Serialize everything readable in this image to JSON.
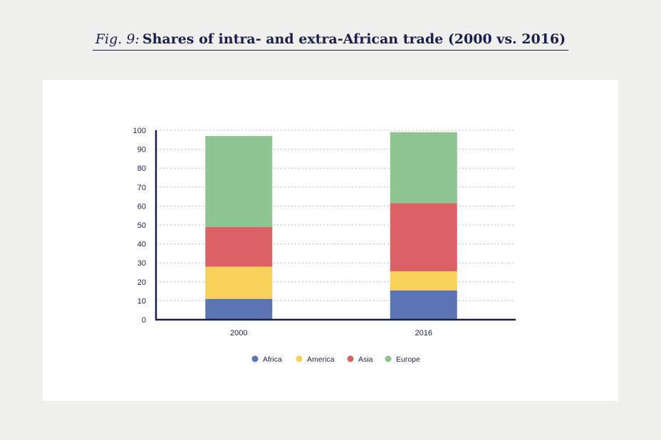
{
  "figure": {
    "label": "Fig. 9:",
    "title": "Shares of intra- and extra-African trade (2000 vs. 2016)"
  },
  "chart_data": {
    "type": "bar",
    "stacked": true,
    "categories": [
      "2000",
      "2016"
    ],
    "ylim": [
      0,
      100
    ],
    "yticks": [
      0,
      10,
      20,
      30,
      40,
      50,
      60,
      70,
      80,
      90,
      100
    ],
    "grid": true,
    "legend_position": "bottom",
    "series": [
      {
        "name": "Africa",
        "color": "#5b74b4",
        "values": [
          11,
          15.5
        ]
      },
      {
        "name": "America",
        "color": "#f8d15a",
        "values": [
          17,
          10
        ]
      },
      {
        "name": "Asia",
        "color": "#db6167",
        "values": [
          21,
          36
        ]
      },
      {
        "name": "Europe",
        "color": "#8ec490",
        "values": [
          48,
          37.5
        ]
      }
    ]
  }
}
